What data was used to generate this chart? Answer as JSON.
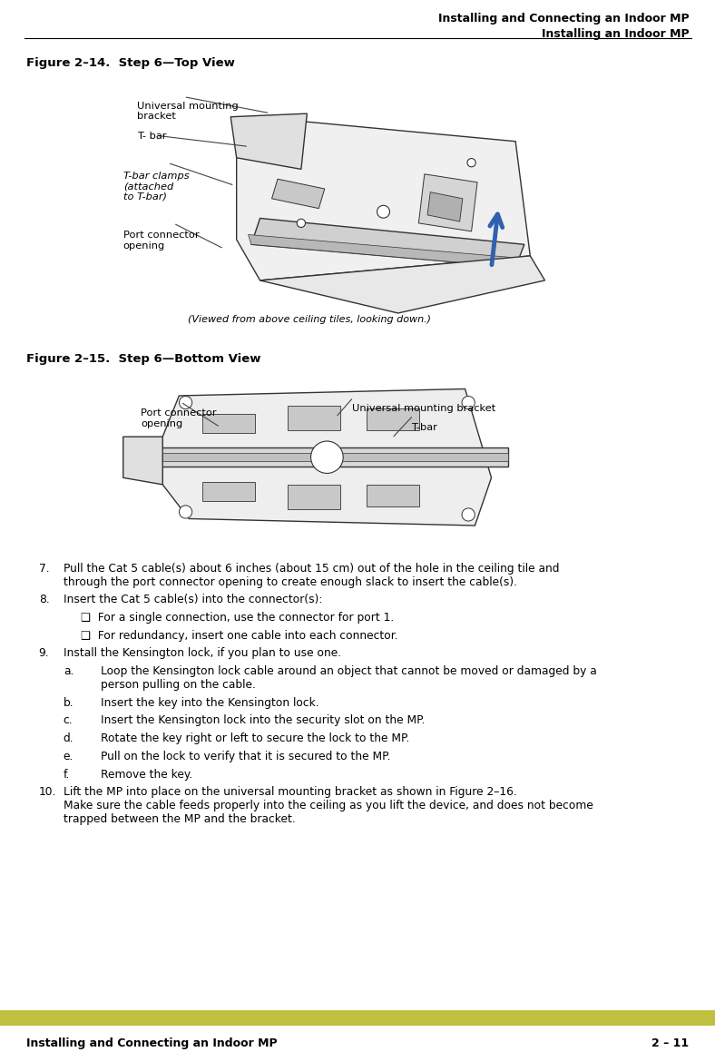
{
  "page_width": 10.18,
  "page_height": 15.06,
  "background_color": "#ffffff",
  "header_line_color": "#000000",
  "footer_bar_color": "#bfbf40",
  "header_text_line1": "Installing and Connecting an Indoor MP",
  "header_text_line2": "Installing an Indoor MP",
  "footer_text_left": "Installing and Connecting an Indoor MP",
  "footer_text_right": "2 – 11",
  "fig1_caption": "Figure 2–14.  Step 6—Top View",
  "fig2_caption": "Figure 2–15.  Step 6—Bottom View",
  "fig1_note": "(Viewed from above ceiling tiles, looking down.)",
  "fig1_labels": {
    "universal_mounting_bracket": "Universal mounting\nbracket",
    "t_bar": "T- bar",
    "t_bar_clamps": "T-bar clamps\n(attached\nto T-bar)",
    "port_connector_opening": "Port connector\nopening"
  },
  "fig2_labels": {
    "port_connector_opening": "Port connector\nopening",
    "universal_mounting_bracket": "Universal mounting bracket",
    "t_bar": "T-bar"
  },
  "body_text": [
    {
      "num": "7.",
      "text": "Pull the Cat 5 cable(s) about 6 inches (about 15 cm) out of the hole in the ceiling tile and\nthrough the port connector opening to create enough slack to insert the cable(s)."
    },
    {
      "num": "8.",
      "text": "Insert the Cat 5 cable(s) into the connector(s):"
    },
    {
      "num": "",
      "text": "❑  For a single connection, use the connector for port 1.",
      "indent": 1
    },
    {
      "num": "",
      "text": "❑  For redundancy, insert one cable into each connector.",
      "indent": 1
    },
    {
      "num": "9.",
      "text": "Install the Kensington lock, if you plan to use one."
    },
    {
      "num": "a.",
      "text": "Loop the Kensington lock cable around an object that cannot be moved or damaged by a\nperson pulling on the cable.",
      "indent": 1
    },
    {
      "num": "b.",
      "text": "Insert the key into the Kensington lock.",
      "indent": 1
    },
    {
      "num": "c.",
      "text": "Insert the Kensington lock into the security slot on the MP.",
      "indent": 1
    },
    {
      "num": "d.",
      "text": "Rotate the key right or left to secure the lock to the MP.",
      "indent": 1
    },
    {
      "num": "e.",
      "text": "Pull on the lock to verify that it is secured to the MP.",
      "indent": 1
    },
    {
      "num": "f.",
      "text": "Remove the key.",
      "indent": 1
    },
    {
      "num": "10.",
      "text": "Lift the MP into place on the universal mounting bracket as shown in Figure 2–16.\nMake sure the cable feeds properly into the ceiling as you lift the device, and does not become\ntrapped between the MP and the bracket.",
      "has_link": true,
      "link_text": "Figure 2–16"
    }
  ]
}
